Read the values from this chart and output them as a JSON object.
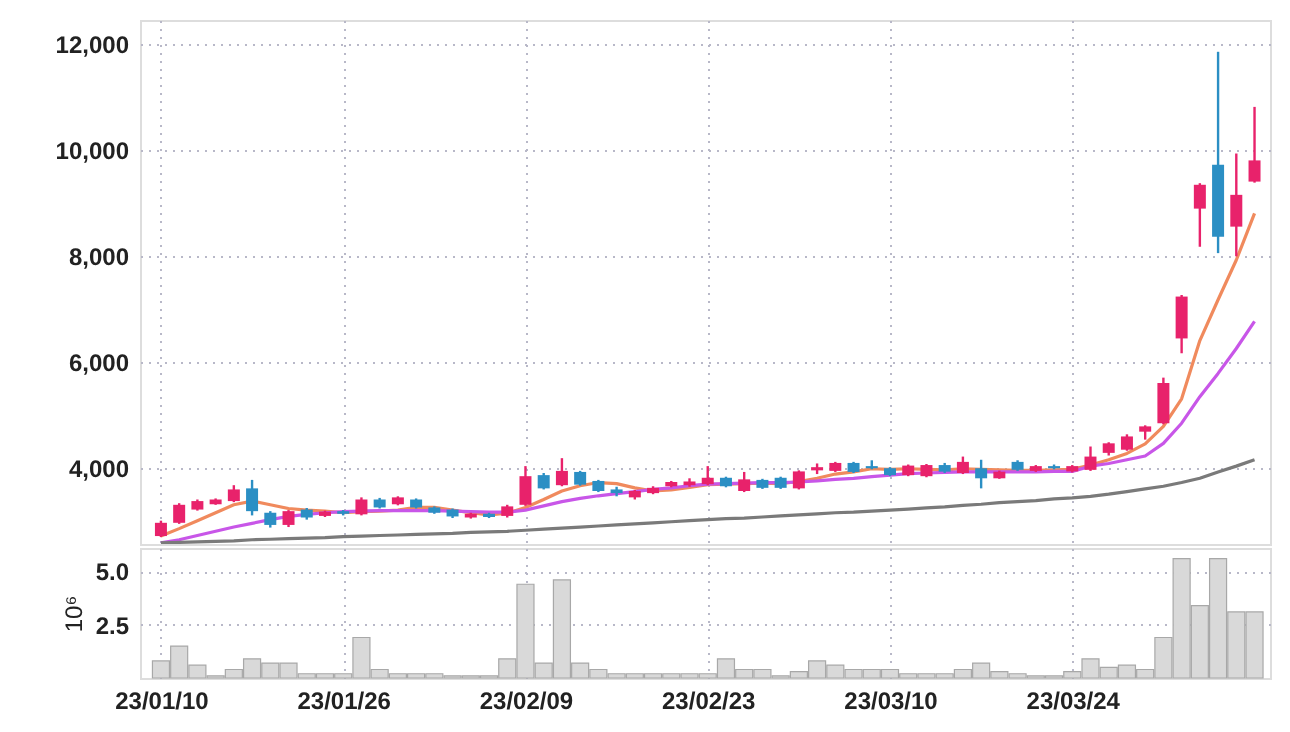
{
  "chart_data": [
    {
      "type": "candlestick",
      "tick_labels": "y",
      "grid": true,
      "categories": [
        null,
        null,
        null,
        null,
        null,
        null,
        null,
        null,
        null,
        null,
        null,
        null,
        null,
        null,
        null,
        null,
        null,
        null,
        null,
        null,
        null,
        null,
        null,
        null,
        null,
        null,
        null,
        null,
        null,
        null,
        null,
        null,
        null,
        null,
        null,
        null,
        null,
        null,
        null,
        null,
        null,
        null,
        null,
        null,
        null,
        null,
        null,
        null,
        null,
        null,
        null,
        null,
        null,
        null,
        null,
        null,
        null,
        null,
        null,
        null,
        null
      ],
      "ylim": [
        2560,
        12450
      ],
      "yticks": [
        {
          "value": 4000,
          "label": "4,000"
        },
        {
          "value": 6000,
          "label": "6,000"
        },
        {
          "value": 8000,
          "label": "8,000"
        },
        {
          "value": 10000,
          "label": "10,000"
        },
        {
          "value": 12000,
          "label": "12,000"
        }
      ],
      "ohlc": [
        [
          2710,
          3000,
          2690,
          2960
        ],
        [
          2960,
          3330,
          2940,
          3300
        ],
        [
          3210,
          3400,
          3190,
          3370
        ],
        [
          3310,
          3420,
          3300,
          3400
        ],
        [
          3370,
          3670,
          3350,
          3590
        ],
        [
          3610,
          3770,
          3100,
          3180
        ],
        [
          3150,
          3180,
          2870,
          2920
        ],
        [
          2920,
          3200,
          2880,
          3180
        ],
        [
          3210,
          3240,
          3020,
          3060
        ],
        [
          3090,
          3190,
          3070,
          3170
        ],
        [
          3180,
          3200,
          3100,
          3130
        ],
        [
          3120,
          3440,
          3100,
          3400
        ],
        [
          3400,
          3430,
          3230,
          3250
        ],
        [
          3310,
          3460,
          3290,
          3440
        ],
        [
          3400,
          3420,
          3230,
          3250
        ],
        [
          3250,
          3270,
          3130,
          3150
        ],
        [
          3210,
          3230,
          3050,
          3080
        ],
        [
          3060,
          3150,
          3040,
          3130
        ],
        [
          3130,
          3150,
          3050,
          3070
        ],
        [
          3090,
          3300,
          3060,
          3270
        ],
        [
          3300,
          4030,
          3280,
          3840
        ],
        [
          3860,
          3900,
          3590,
          3610
        ],
        [
          3670,
          4180,
          3650,
          3940
        ],
        [
          3920,
          3940,
          3660,
          3680
        ],
        [
          3750,
          3770,
          3540,
          3560
        ],
        [
          3590,
          3640,
          3460,
          3520
        ],
        [
          3440,
          3580,
          3400,
          3560
        ],
        [
          3520,
          3650,
          3500,
          3620
        ],
        [
          3650,
          3750,
          3630,
          3730
        ],
        [
          3670,
          3800,
          3640,
          3740
        ],
        [
          3690,
          4030,
          3670,
          3810
        ],
        [
          3810,
          3830,
          3630,
          3650
        ],
        [
          3560,
          3920,
          3540,
          3780
        ],
        [
          3770,
          3790,
          3600,
          3620
        ],
        [
          3810,
          3830,
          3600,
          3620
        ],
        [
          3610,
          3950,
          3590,
          3930
        ],
        [
          3950,
          4080,
          3880,
          4010
        ],
        [
          3940,
          4110,
          3920,
          4090
        ],
        [
          4090,
          4110,
          3900,
          3920
        ],
        [
          4030,
          4140,
          3970,
          3990
        ],
        [
          3990,
          4010,
          3840,
          3860
        ],
        [
          3860,
          4060,
          3840,
          4040
        ],
        [
          3840,
          4070,
          3820,
          4050
        ],
        [
          4050,
          4090,
          3900,
          3925
        ],
        [
          3900,
          4210,
          3880,
          4110
        ],
        [
          3990,
          4150,
          3610,
          3800
        ],
        [
          3800,
          3945,
          3790,
          3925
        ],
        [
          4110,
          4140,
          3940,
          3960
        ],
        [
          3940,
          4050,
          3920,
          4030
        ],
        [
          4030,
          4060,
          3970,
          3990
        ],
        [
          3930,
          4050,
          3910,
          4030
        ],
        [
          3960,
          4400,
          3940,
          4210
        ],
        [
          4280,
          4480,
          4230,
          4460
        ],
        [
          4340,
          4630,
          4320,
          4590
        ],
        [
          4680,
          4800,
          4530,
          4780
        ],
        [
          4840,
          5700,
          4820,
          5600
        ],
        [
          6440,
          7260,
          6160,
          7230
        ],
        [
          8890,
          9370,
          8170,
          9340
        ],
        [
          9720,
          11850,
          8050,
          8360
        ],
        [
          8550,
          9930,
          7990,
          9150
        ],
        [
          9400,
          10810,
          9380,
          9800
        ]
      ],
      "colors": [
        "#e8226b",
        "#e8226b",
        "#e8226b",
        "#e8226b",
        "#e8226b",
        "#2b8fc4",
        "#2b8fc4",
        "#e8226b",
        "#2b8fc4",
        "#e8226b",
        "#2b8fc4",
        "#e8226b",
        "#2b8fc4",
        "#e8226b",
        "#2b8fc4",
        "#2b8fc4",
        "#2b8fc4",
        "#e8226b",
        "#2b8fc4",
        "#e8226b",
        "#e8226b",
        "#2b8fc4",
        "#e8226b",
        "#2b8fc4",
        "#2b8fc4",
        "#2b8fc4",
        "#e8226b",
        "#e8226b",
        "#e8226b",
        "#e8226b",
        "#e8226b",
        "#2b8fc4",
        "#e8226b",
        "#2b8fc4",
        "#2b8fc4",
        "#e8226b",
        "#e8226b",
        "#e8226b",
        "#2b8fc4",
        "#2b8fc4",
        "#2b8fc4",
        "#e8226b",
        "#e8226b",
        "#2b8fc4",
        "#e8226b",
        "#2b8fc4",
        "#e8226b",
        "#2b8fc4",
        "#e8226b",
        "#2b8fc4",
        "#e8226b",
        "#e8226b",
        "#e8226b",
        "#e8226b",
        "#e8226b",
        "#e8226b",
        "#e8226b",
        "#e8226b",
        "#2b8fc4",
        "#e8226b",
        "#e8226b"
      ],
      "series": [
        {
          "type": "line",
          "color": "#f08a5d",
          "values": [
            2710,
            2850,
            3000,
            3150,
            3300,
            3370,
            3300,
            3230,
            3200,
            3180,
            3150,
            3170,
            3180,
            3200,
            3250,
            3250,
            3200,
            3150,
            3110,
            3140,
            3250,
            3400,
            3560,
            3660,
            3720,
            3700,
            3620,
            3560,
            3580,
            3630,
            3680,
            3690,
            3700,
            3710,
            3700,
            3740,
            3800,
            3880,
            3920,
            3980,
            3970,
            3980,
            3970,
            3960,
            3980,
            3970,
            3960,
            3950,
            3950,
            3960,
            3970,
            4050,
            4150,
            4270,
            4450,
            4780,
            5300,
            6400,
            7170,
            7920,
            8800
          ]
        },
        {
          "type": "line",
          "color": "#c856e8",
          "values": [
            2580,
            2640,
            2720,
            2800,
            2880,
            2950,
            3020,
            3080,
            3120,
            3150,
            3170,
            3180,
            3190,
            3190,
            3190,
            3190,
            3180,
            3170,
            3160,
            3160,
            3200,
            3280,
            3360,
            3420,
            3470,
            3510,
            3550,
            3590,
            3620,
            3660,
            3690,
            3700,
            3710,
            3720,
            3720,
            3730,
            3750,
            3780,
            3800,
            3830,
            3860,
            3890,
            3900,
            3910,
            3920,
            3920,
            3920,
            3920,
            3920,
            3930,
            3930,
            4030,
            4080,
            4150,
            4220,
            4460,
            4840,
            5340,
            5780,
            6250,
            6760
          ]
        },
        {
          "type": "line",
          "color": "#7a7a7a",
          "values": [
            2580,
            2590,
            2600,
            2610,
            2620,
            2640,
            2650,
            2660,
            2670,
            2680,
            2700,
            2710,
            2720,
            2730,
            2740,
            2750,
            2760,
            2780,
            2790,
            2800,
            2820,
            2840,
            2860,
            2880,
            2900,
            2920,
            2940,
            2960,
            2980,
            3000,
            3020,
            3040,
            3050,
            3070,
            3090,
            3110,
            3130,
            3150,
            3160,
            3180,
            3200,
            3220,
            3240,
            3260,
            3290,
            3310,
            3340,
            3360,
            3380,
            3410,
            3430,
            3460,
            3500,
            3550,
            3600,
            3650,
            3720,
            3800,
            3920,
            4030,
            4150
          ]
        }
      ]
    },
    {
      "type": "bar",
      "grid": true,
      "ylabel": "10⁶",
      "color": "#d9d9d9",
      "categories": [
        "23/01/10",
        null,
        null,
        null,
        null,
        null,
        null,
        null,
        null,
        null,
        "23/01/26",
        null,
        null,
        null,
        null,
        null,
        null,
        null,
        null,
        null,
        "23/02/09",
        null,
        null,
        null,
        null,
        null,
        null,
        null,
        null,
        null,
        "23/02/23",
        null,
        null,
        null,
        null,
        null,
        null,
        null,
        null,
        null,
        "23/03/10",
        null,
        null,
        null,
        null,
        null,
        null,
        null,
        null,
        null,
        "23/03/24",
        null,
        null,
        null,
        null,
        null,
        null,
        null,
        null,
        null,
        null
      ],
      "ylim": [
        0,
        6.1
      ],
      "yticks": [
        2.5,
        {
          "value": 5,
          "label": "5.0"
        }
      ],
      "values": [
        0.8,
        1.5,
        0.6,
        0.1,
        0.4,
        0.9,
        0.7,
        0.7,
        0.2,
        0.2,
        0.2,
        1.9,
        0.4,
        0.2,
        0.2,
        0.2,
        0.1,
        0.1,
        0.1,
        0.9,
        4.4,
        0.7,
        4.6,
        0.7,
        0.4,
        0.2,
        0.2,
        0.2,
        0.2,
        0.2,
        0.2,
        0.9,
        0.4,
        0.4,
        0.1,
        0.3,
        0.8,
        0.6,
        0.4,
        0.4,
        0.4,
        0.2,
        0.2,
        0.2,
        0.4,
        0.7,
        0.3,
        0.2,
        0.1,
        0.1,
        0.3,
        0.9,
        0.5,
        0.6,
        0.4,
        1.9,
        5.6,
        3.4,
        5.6,
        3.1,
        3.1
      ]
    }
  ]
}
